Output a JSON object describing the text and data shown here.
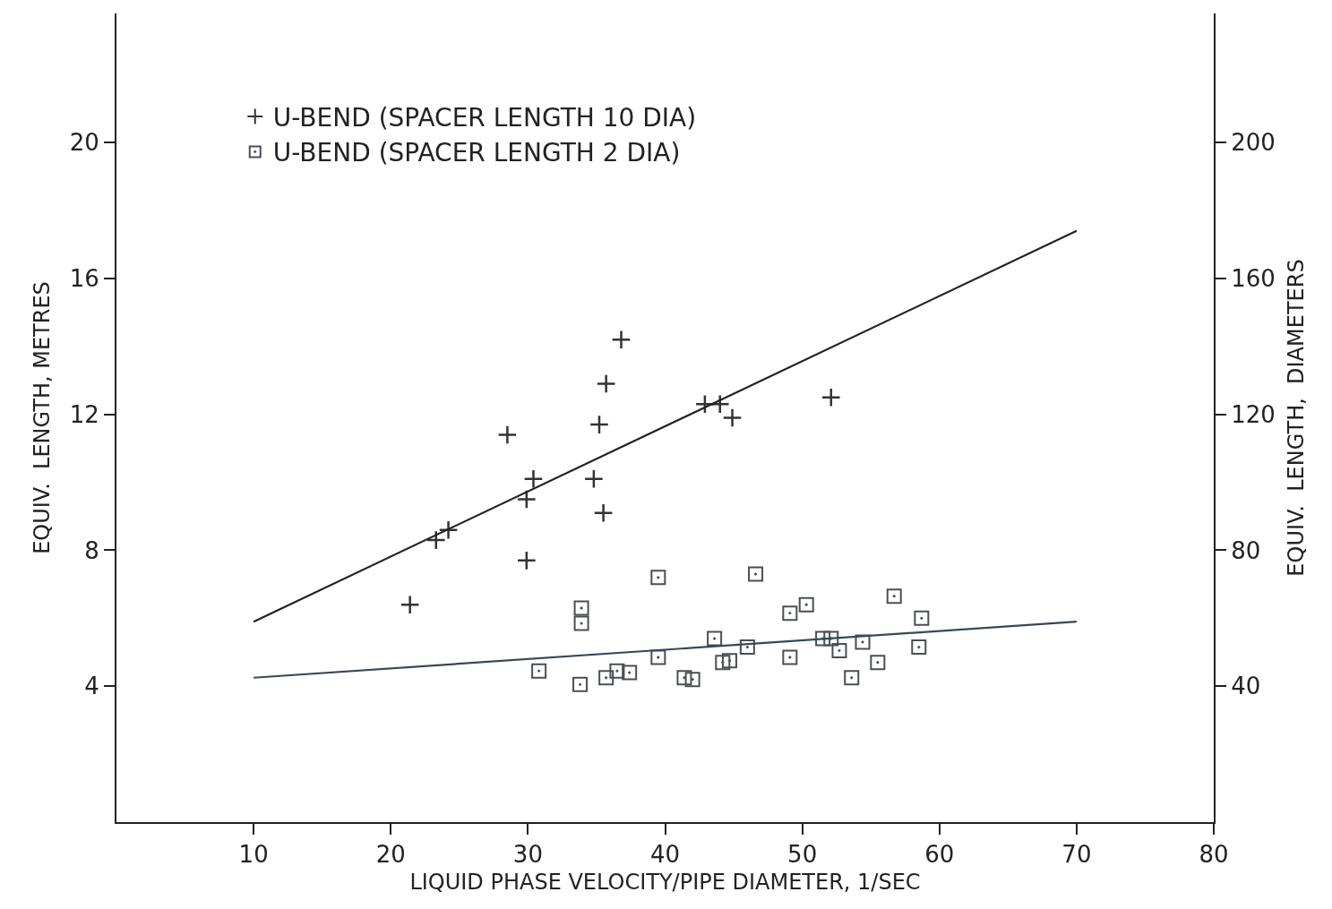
{
  "chart_data": {
    "type": "scatter",
    "xlabel": "LIQUID PHASE VELOCITY/PIPE DIAMETER, 1/SEC",
    "ylabel": "EQUIV.  LENGTH, METRES",
    "y2label": "EQUIV.  LENGTH,  DIAMETERS",
    "xlim": [
      0,
      80
    ],
    "xticks": [
      10,
      20,
      30,
      40,
      50,
      60,
      70,
      80
    ],
    "ylim": [
      0,
      23.8
    ],
    "yticks": [
      4,
      8,
      12,
      16,
      20
    ],
    "y2lim": [
      0,
      238
    ],
    "y2ticks": [
      40,
      80,
      120,
      160,
      200
    ],
    "legend": "top left",
    "series": [
      {
        "name": "U-BEND (SPACER LENGTH 10 DIA)",
        "marker": "cross",
        "color": "#333333",
        "x": [
          21.4,
          23.3,
          24.2,
          28.5,
          29.9,
          29.9,
          30.4,
          34.8,
          35.2,
          35.5,
          35.7,
          36.8,
          42.9,
          44.0,
          44.9,
          52.1
        ],
        "values": [
          6.4,
          8.3,
          8.6,
          11.4,
          7.7,
          9.5,
          10.1,
          10.1,
          11.7,
          9.1,
          12.9,
          14.2,
          12.3,
          12.3,
          11.9,
          12.5
        ]
      },
      {
        "name": "U-BEND (SPACER LENGTH 2 DIA)",
        "marker": "square",
        "color": "#4a4f55",
        "x": [
          30.8,
          33.8,
          33.9,
          33.9,
          35.7,
          36.5,
          37.4,
          39.5,
          39.5,
          41.4,
          42.0,
          43.6,
          44.2,
          44.7,
          46.0,
          46.6,
          49.1,
          49.1,
          50.3,
          51.5,
          52.1,
          52.7,
          53.6,
          54.4,
          55.5,
          56.7,
          58.5,
          58.7
        ],
        "values": [
          4.45,
          4.05,
          6.3,
          5.85,
          4.25,
          4.45,
          4.4,
          4.85,
          7.2,
          4.25,
          4.2,
          5.4,
          4.7,
          4.75,
          5.15,
          7.3,
          4.85,
          6.15,
          6.4,
          5.4,
          5.4,
          5.05,
          4.25,
          5.3,
          4.7,
          6.65,
          5.15,
          6.0
        ]
      },
      {
        "type": "line",
        "marker": "none",
        "color": "#222222",
        "x": [
          10,
          70
        ],
        "values": [
          5.9,
          17.4
        ]
      },
      {
        "type": "line",
        "marker": "none",
        "color": "#34495a",
        "x": [
          10,
          70
        ],
        "values": [
          4.25,
          5.9
        ]
      }
    ]
  }
}
